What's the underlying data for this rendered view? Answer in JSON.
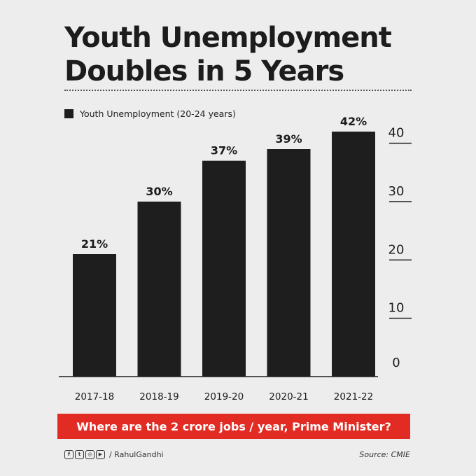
{
  "header": {
    "title_line1": "Youth Unemployment",
    "title_line2": "Doubles in 5 Years"
  },
  "chart_data": {
    "type": "bar",
    "categories": [
      "2017-18",
      "2018-19",
      "2019-20",
      "2020-21",
      "2021-22"
    ],
    "series": [
      {
        "name": "Youth Unemployment (20-24 years)",
        "values": [
          21,
          30,
          37,
          39,
          42
        ]
      }
    ],
    "data_labels": [
      "21%",
      "30%",
      "37%",
      "39%",
      "42%"
    ],
    "ylim": [
      0,
      42
    ],
    "yticks": [
      0,
      10,
      20,
      30,
      40
    ],
    "ytick_position": "right",
    "legend_position": "top-left",
    "grid": false,
    "bar_color": "#1e1e1e"
  },
  "cta": {
    "text": "Where are the 2 crore jobs / year, Prime Minister?",
    "color": "#e22b22"
  },
  "footer": {
    "social_icons": [
      "facebook-icon",
      "twitter-icon",
      "instagram-icon",
      "youtube-icon"
    ],
    "handle": "/ RahulGandhi",
    "source": "Source: CMIE"
  }
}
